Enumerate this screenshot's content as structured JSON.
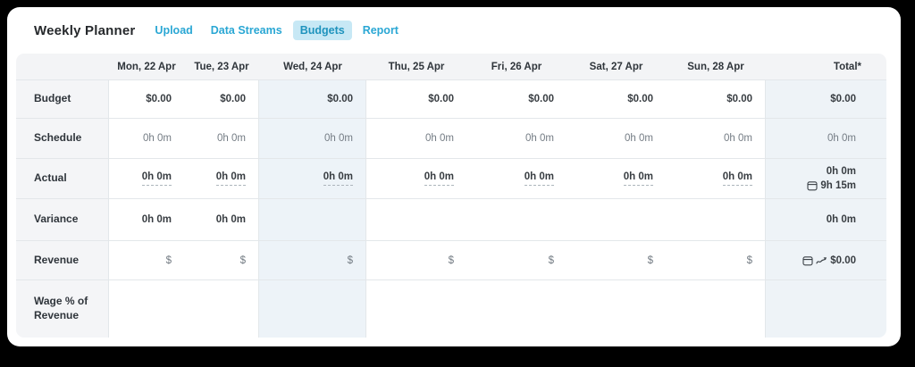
{
  "colors": {
    "accent": "#2aa7d4",
    "active_tab_bg": "#c7e8f5",
    "wednesday_tint": "#edf3f8",
    "total_tint": "#eef3f7",
    "header_band": "#f3f4f6",
    "label_column": "#f4f5f7",
    "grid_border": "#e3e7ea",
    "text_dark": "#383d42",
    "text_muted": "#747c84",
    "page_background": "#000000"
  },
  "header": {
    "title": "Weekly Planner",
    "tabs": [
      {
        "key": "upload",
        "label": "Upload",
        "active": false
      },
      {
        "key": "data-streams",
        "label": "Data Streams",
        "active": false
      },
      {
        "key": "budgets",
        "label": "Budgets",
        "active": true
      },
      {
        "key": "report",
        "label": "Report",
        "active": false
      }
    ]
  },
  "table": {
    "columns": [
      {
        "key": "label",
        "label": ""
      },
      {
        "key": "mon",
        "label": "Mon, 22 Apr"
      },
      {
        "key": "tue",
        "label": "Tue, 23 Apr"
      },
      {
        "key": "wed",
        "label": "Wed, 24 Apr"
      },
      {
        "key": "thu",
        "label": "Thu, 25 Apr"
      },
      {
        "key": "fri",
        "label": "Fri, 26 Apr"
      },
      {
        "key": "sat",
        "label": "Sat, 27 Apr"
      },
      {
        "key": "sun",
        "label": "Sun, 28 Apr"
      },
      {
        "key": "total",
        "label": "Total*"
      }
    ],
    "rows": [
      {
        "name": "budget",
        "label": "Budget",
        "style": "strong",
        "editable": true,
        "cells": [
          "$0.00",
          "$0.00",
          "$0.00",
          "$0.00",
          "$0.00",
          "$0.00",
          "$0.00"
        ],
        "total": {
          "type": "text",
          "text": "$0.00"
        }
      },
      {
        "name": "schedule",
        "label": "Schedule",
        "style": "muted",
        "editable": false,
        "cells": [
          "0h 0m",
          "0h 0m",
          "0h 0m",
          "0h 0m",
          "0h 0m",
          "0h 0m",
          "0h 0m"
        ],
        "total": {
          "type": "text",
          "text": "0h 0m"
        }
      },
      {
        "name": "actual",
        "label": "Actual",
        "style": "dashed",
        "editable": true,
        "cells": [
          "0h 0m",
          "0h 0m",
          "0h 0m",
          "0h 0m",
          "0h 0m",
          "0h 0m",
          "0h 0m"
        ],
        "total": {
          "type": "two-line",
          "top": "0h 0m",
          "bottom": "9h 15m",
          "bottom_icon": "calendar-icon"
        }
      },
      {
        "name": "variance",
        "label": "Variance",
        "style": "strong",
        "editable": false,
        "cells": [
          "0h 0m",
          "0h 0m",
          "",
          "",
          "",
          "",
          ""
        ],
        "total": {
          "type": "text",
          "text": "0h 0m"
        }
      },
      {
        "name": "revenue",
        "label": "Revenue",
        "style": "muted",
        "editable": true,
        "cells": [
          "$",
          "$",
          "$",
          "$",
          "$",
          "$",
          "$"
        ],
        "total": {
          "type": "icon-value",
          "icons": [
            "calendar-icon",
            "trend-up-icon"
          ],
          "text": "$0.00"
        }
      },
      {
        "name": "wage-pct-of-revenue",
        "label": "Wage % of Revenue",
        "style": "strong",
        "editable": false,
        "cells": [
          "",
          "",
          "",
          "",
          "",
          "",
          ""
        ],
        "total": {
          "type": "text",
          "text": ""
        }
      }
    ]
  }
}
